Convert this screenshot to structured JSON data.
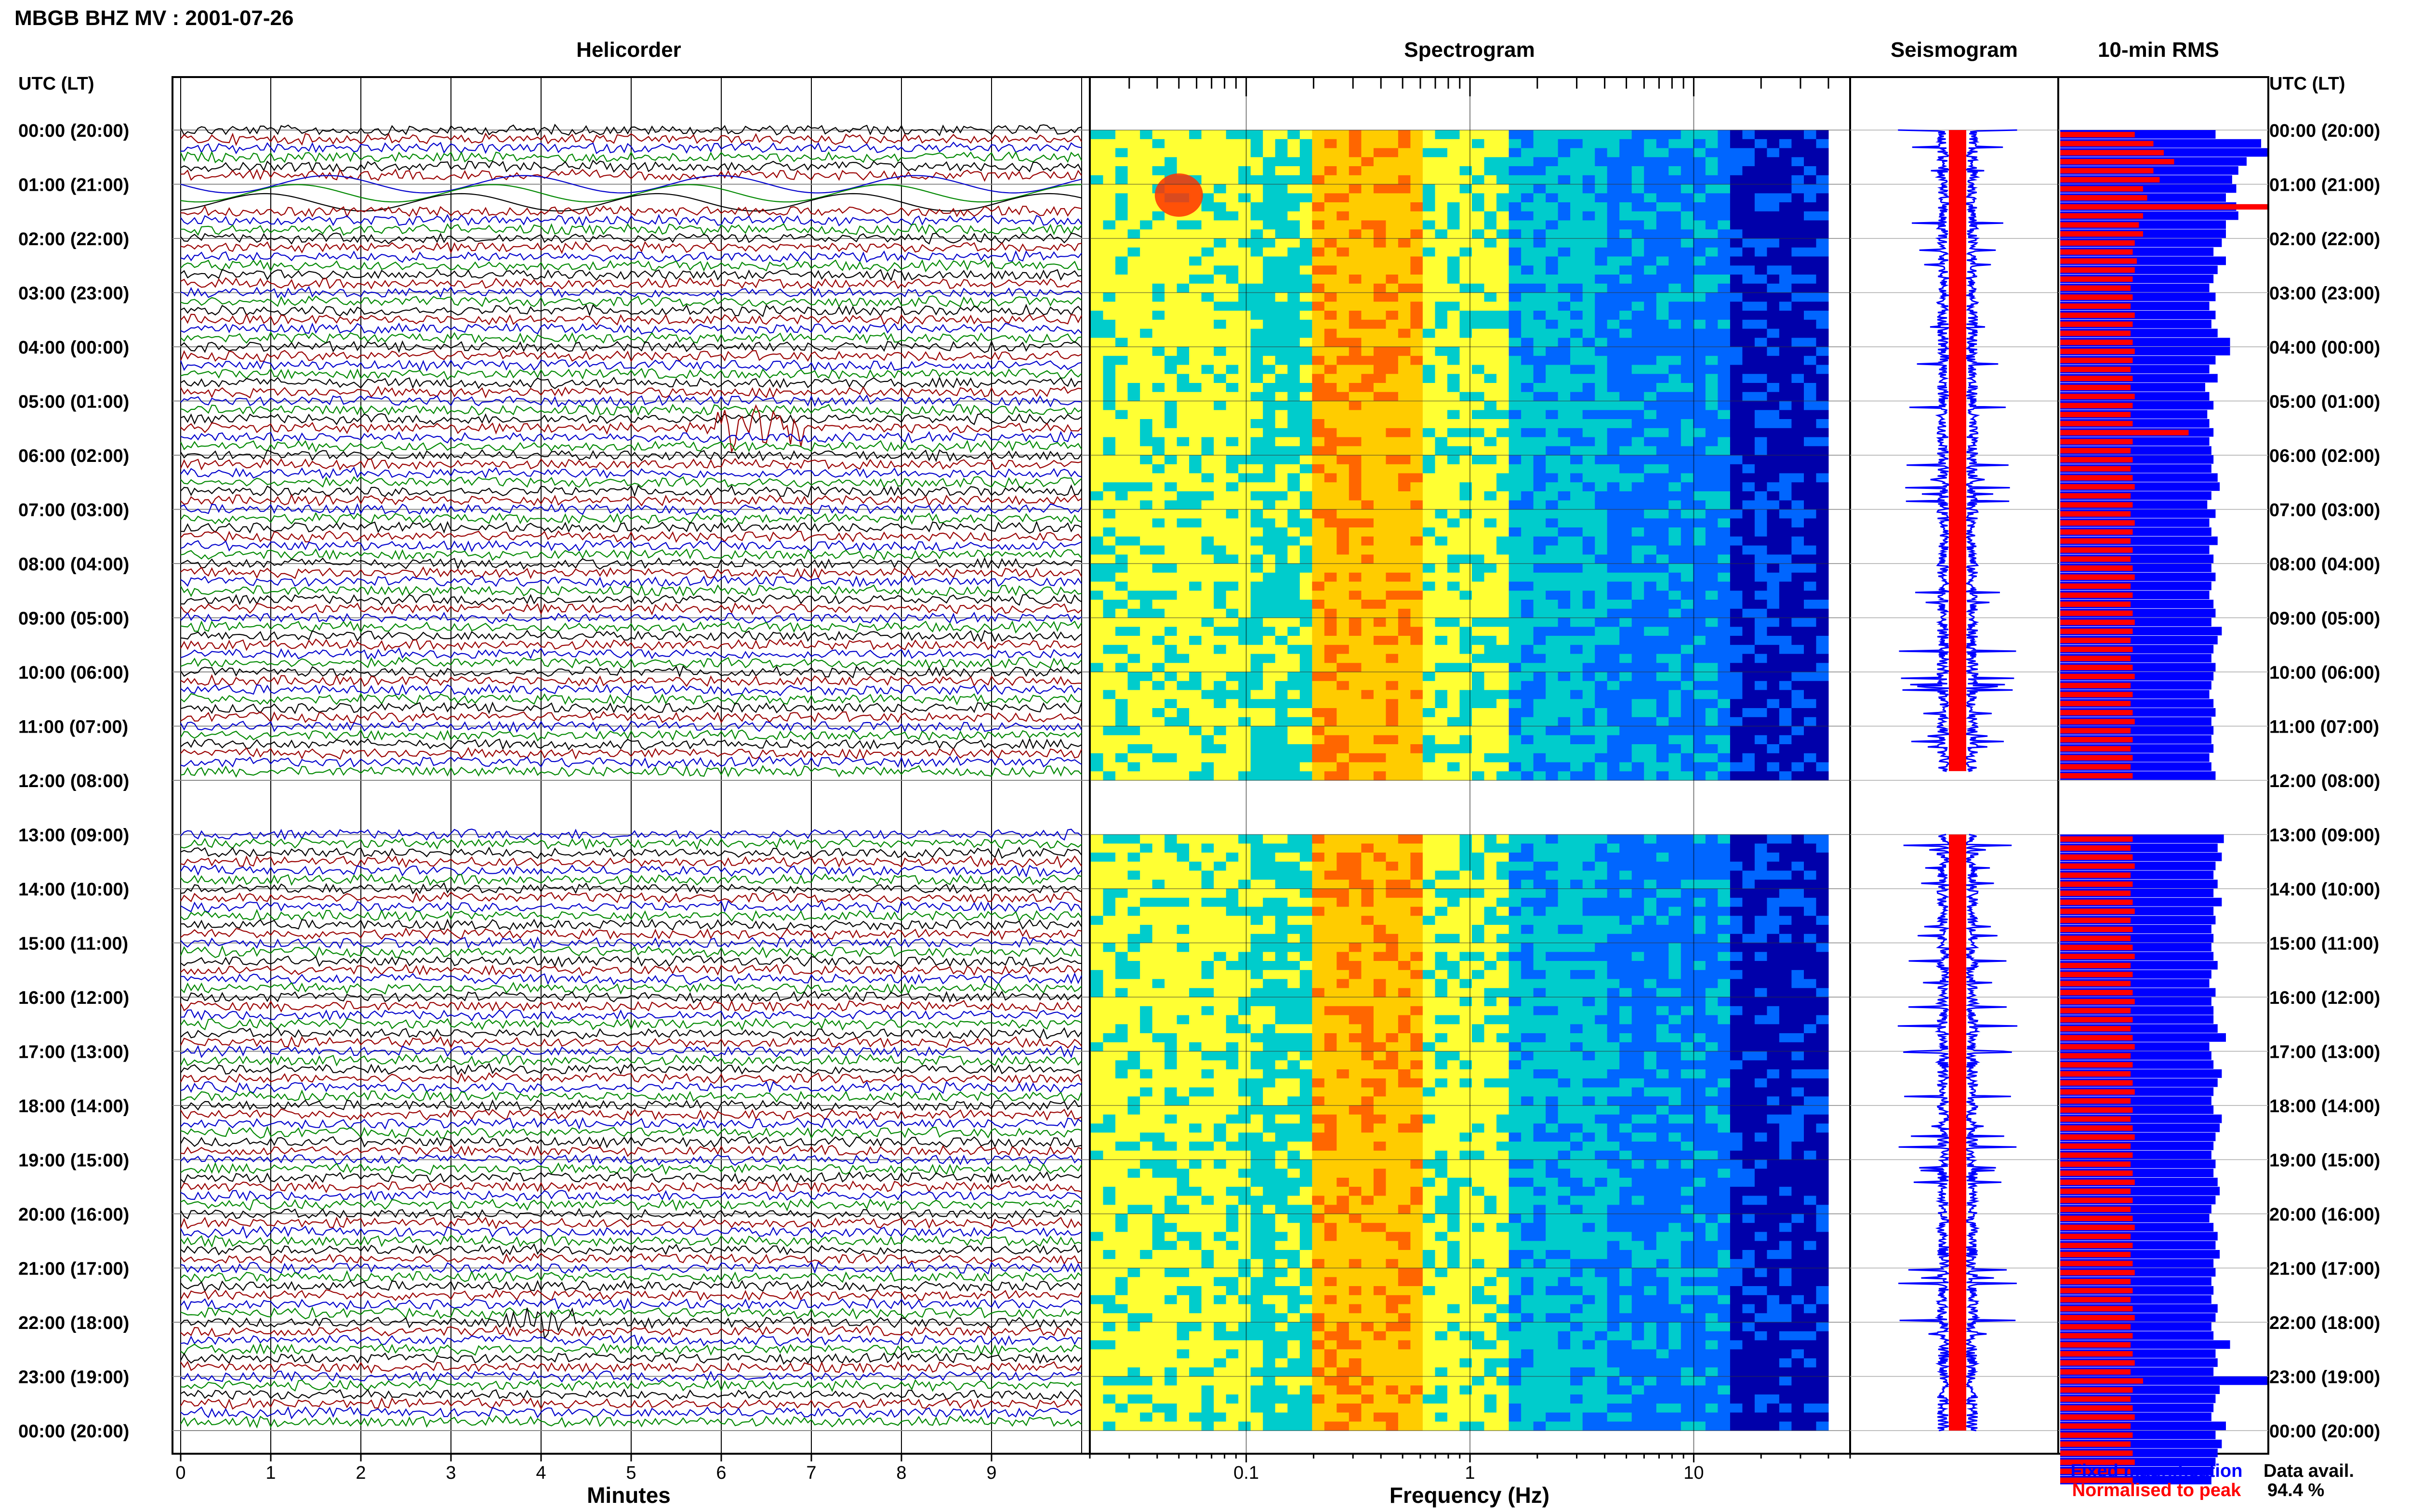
{
  "header": {
    "station_title": "MBGB BHZ MV : 2001-07-26",
    "time_axis_label_left": "UTC (LT)",
    "time_axis_label_right": "UTC (LT)"
  },
  "panels": {
    "helicorder": "Helicorder",
    "spectrogram": "Spectrogram",
    "seismogram": "Seismogram",
    "rms": "10-min RMS"
  },
  "time_labels": [
    "00:00 (20:00)",
    "01:00 (21:00)",
    "02:00 (22:00)",
    "03:00 (23:00)",
    "04:00 (00:00)",
    "05:00 (01:00)",
    "06:00 (02:00)",
    "07:00 (03:00)",
    "08:00 (04:00)",
    "09:00 (05:00)",
    "10:00 (06:00)",
    "11:00 (07:00)",
    "12:00 (08:00)",
    "13:00 (09:00)",
    "14:00 (10:00)",
    "15:00 (11:00)",
    "16:00 (12:00)",
    "17:00 (13:00)",
    "18:00 (14:00)",
    "19:00 (15:00)",
    "20:00 (16:00)",
    "21:00 (17:00)",
    "22:00 (18:00)",
    "23:00 (19:00)",
    "00:00 (20:00)"
  ],
  "legend": {
    "fixed": "Fixed magnification",
    "normalised": "Normalised to peak",
    "fixed_color": "#0000ff",
    "normalised_color": "#ff0000"
  },
  "data_availability": {
    "label": "Data avail.",
    "value": "94.4 %"
  },
  "chart_data": [
    {
      "type": "line",
      "panel": "helicorder",
      "xlabel": "Minutes",
      "x_ticks": [
        "0",
        "1",
        "2",
        "3",
        "4",
        "5",
        "6",
        "7",
        "8",
        "9"
      ],
      "xlim": [
        0,
        10
      ],
      "trace_colors": [
        "#000000",
        "#990000",
        "#0000cc",
        "#008800"
      ],
      "gap_hours": [
        12
      ],
      "events": [
        {
          "hour": 1.0,
          "minute": 6.0,
          "note": "large oscillations"
        },
        {
          "hour": 5.5,
          "minute": 6.4
        },
        {
          "hour": 22.0,
          "minute": 4.0
        }
      ]
    },
    {
      "type": "heatmap",
      "panel": "spectrogram",
      "xlabel": "Frequency (Hz)",
      "x_scale": "log",
      "xlim": [
        0.02,
        50
      ],
      "x_ticks": [
        "0.1",
        "1",
        "10"
      ],
      "colormap": [
        "#ffff33",
        "#ffcc00",
        "#ff6600",
        "#00cccc",
        "#0066ff",
        "#0000aa"
      ],
      "gap_hours": [
        12
      ]
    },
    {
      "type": "line",
      "panel": "seismogram",
      "series": [
        {
          "name": "Fixed magnification"
        },
        {
          "name": "Normalised to peak"
        }
      ]
    },
    {
      "type": "bar",
      "panel": "rms",
      "orientation": "horizontal",
      "series": [
        {
          "name": "Fixed magnification",
          "color": "#0000ff",
          "values": [
            0.75,
            0.97,
            1.0,
            0.9,
            0.86,
            0.83,
            0.85,
            0.8,
            0.85,
            0.86,
            0.8,
            0.8,
            0.78,
            0.74,
            0.8,
            0.76,
            0.74,
            0.72,
            0.75,
            0.72,
            0.75,
            0.73,
            0.76,
            0.82,
            0.82,
            0.75,
            0.72,
            0.76,
            0.7,
            0.72,
            0.74,
            0.71,
            0.72,
            0.74,
            0.72,
            0.73,
            0.74,
            0.73,
            0.76,
            0.77,
            0.73,
            0.71,
            0.75,
            0.72,
            0.73,
            0.76,
            0.72,
            0.74,
            0.73,
            0.75,
            0.73,
            0.72,
            0.74,
            0.75,
            0.73,
            0.78,
            0.76,
            0.74,
            0.73,
            0.75,
            0.74,
            0.73,
            0.72,
            0.74,
            0.75,
            0.73,
            0.74,
            0.73,
            0.74,
            0.72,
            0.73,
            0.75,
            null,
            null,
            null,
            null,
            null,
            null,
            0.79,
            0.76,
            0.78,
            0.75,
            0.74,
            0.76,
            0.74,
            0.78,
            0.74,
            0.75,
            0.73,
            0.74,
            0.73,
            0.74,
            0.76,
            0.73,
            0.72,
            0.75,
            0.73,
            0.74,
            0.74,
            0.76,
            0.8,
            0.72,
            0.73,
            0.74,
            0.78,
            0.76,
            0.74,
            0.73,
            0.74,
            0.78,
            0.77,
            0.75,
            0.74,
            0.73,
            0.75,
            0.74,
            0.76,
            0.77,
            0.75,
            0.73,
            0.72,
            0.74,
            0.76,
            0.75,
            0.77,
            0.74,
            0.75,
            0.73,
            0.74,
            0.73,
            0.76,
            0.75,
            0.73,
            0.74,
            0.82,
            0.75,
            0.76,
            0.74,
            1.0,
            0.77,
            0.75,
            0.74,
            0.73,
            0.8,
            0.75,
            0.78,
            0.76,
            0.75,
            0.74,
            0.73
          ]
        },
        {
          "name": "Normalised to peak",
          "color": "#ff0000",
          "values": [
            0.36,
            0.45,
            0.5,
            0.55,
            0.45,
            0.48,
            0.4,
            0.42,
            1.0,
            0.4,
            0.38,
            0.4,
            0.36,
            0.35,
            0.37,
            0.36,
            0.35,
            0.34,
            0.35,
            0.34,
            0.36,
            0.35,
            0.34,
            0.35,
            0.36,
            0.35,
            0.34,
            0.35,
            0.34,
            0.36,
            0.35,
            0.34,
            0.35,
            0.62,
            0.35,
            0.34,
            0.35,
            0.34,
            0.35,
            0.36,
            0.34,
            0.35,
            0.34,
            0.36,
            0.35,
            0.34,
            0.35,
            0.34,
            0.35,
            0.36,
            0.34,
            0.35,
            0.34,
            0.35,
            0.36,
            0.35,
            0.34,
            0.35,
            0.34,
            0.35,
            0.36,
            0.34,
            0.35,
            0.34,
            0.35,
            0.36,
            0.34,
            0.35,
            0.34,
            0.35,
            0.34,
            0.35,
            null,
            null,
            null,
            null,
            null,
            null,
            0.35,
            0.34,
            0.35,
            0.36,
            0.34,
            0.35,
            0.34,
            0.35,
            0.36,
            0.34,
            0.35,
            0.34,
            0.35,
            0.36,
            0.34,
            0.35,
            0.34,
            0.35,
            0.36,
            0.34,
            0.35,
            0.34,
            0.35,
            0.36,
            0.34,
            0.35,
            0.34,
            0.35,
            0.36,
            0.34,
            0.35,
            0.34,
            0.35,
            0.36,
            0.34,
            0.35,
            0.34,
            0.35,
            0.36,
            0.34,
            0.35,
            0.34,
            0.35,
            0.36,
            0.34,
            0.35,
            0.34,
            0.35,
            0.36,
            0.34,
            0.35,
            0.34,
            0.35,
            0.36,
            0.34,
            0.35,
            0.34,
            0.35,
            0.36,
            0.34,
            0.4,
            0.35,
            0.34,
            0.35,
            0.36,
            0.34,
            0.35,
            0.34,
            0.35,
            0.36,
            0.34,
            0.35
          ]
        }
      ]
    }
  ]
}
